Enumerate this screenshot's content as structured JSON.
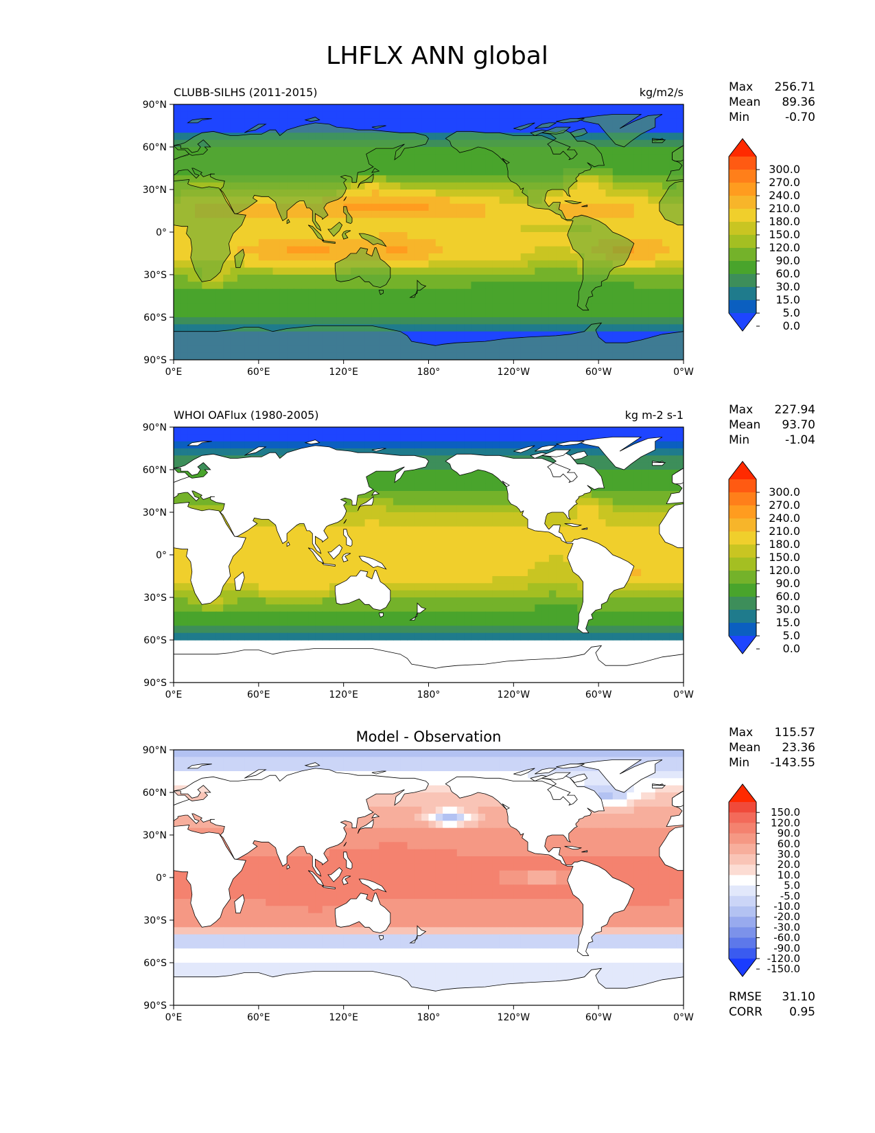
{
  "figure_title": "LHFLX ANN global",
  "chart_data": [
    {
      "type": "heatmap",
      "title": "CLUBB-SILHS (2011-2015)",
      "units": "kg/m2/s",
      "xlim": [
        0,
        360
      ],
      "ylim": [
        -90,
        90
      ],
      "x_ticks": [
        "0°E",
        "60°E",
        "120°E",
        "180°",
        "120°W",
        "60°W",
        "0°W"
      ],
      "y_ticks": [
        "90°N",
        "60°N",
        "30°N",
        "0°",
        "30°S",
        "60°S",
        "90°S"
      ],
      "stats": [
        {
          "label": "Max",
          "value": "256.71"
        },
        {
          "label": "Mean",
          "value": "89.36"
        },
        {
          "label": "Min",
          "value": "-0.70"
        }
      ],
      "colorbar": {
        "levels": [
          "300.0",
          "270.0",
          "240.0",
          "210.0",
          "180.0",
          "150.0",
          "120.0",
          "90.0",
          "60.0",
          "30.0",
          "15.0",
          "5.0",
          "0.0"
        ],
        "colors": [
          "#ff2a00",
          "#ff5a12",
          "#ff7f1a",
          "#ff9c1f",
          "#f7b52a",
          "#f0cf2c",
          "#c9c522",
          "#a4bf22",
          "#74b22a",
          "#49a42c",
          "#3d8e5a",
          "#1f7b8c",
          "#0b5fc0",
          "#1e45ff"
        ]
      },
      "field": "model",
      "land_masked": false
    },
    {
      "type": "heatmap",
      "title": "WHOI OAFlux (1980-2005)",
      "units": "kg m-2 s-1",
      "xlim": [
        0,
        360
      ],
      "ylim": [
        -90,
        90
      ],
      "x_ticks": [
        "0°E",
        "60°E",
        "120°E",
        "180°",
        "120°W",
        "60°W",
        "0°W"
      ],
      "y_ticks": [
        "90°N",
        "60°N",
        "30°N",
        "0°",
        "30°S",
        "60°S",
        "90°S"
      ],
      "stats": [
        {
          "label": "Max",
          "value": "227.94"
        },
        {
          "label": "Mean",
          "value": "93.70"
        },
        {
          "label": "Min",
          "value": "-1.04"
        }
      ],
      "colorbar": {
        "levels": [
          "300.0",
          "270.0",
          "240.0",
          "210.0",
          "180.0",
          "150.0",
          "120.0",
          "90.0",
          "60.0",
          "30.0",
          "15.0",
          "5.0",
          "0.0"
        ],
        "colors": [
          "#ff2a00",
          "#ff5a12",
          "#ff7f1a",
          "#ff9c1f",
          "#f7b52a",
          "#f0cf2c",
          "#c9c522",
          "#a4bf22",
          "#74b22a",
          "#49a42c",
          "#3d8e5a",
          "#1f7b8c",
          "#0b5fc0",
          "#1e45ff"
        ]
      },
      "field": "obs",
      "land_masked": true
    },
    {
      "type": "heatmap",
      "title": "Model - Observation",
      "units": "",
      "xlim": [
        0,
        360
      ],
      "ylim": [
        -90,
        90
      ],
      "x_ticks": [
        "0°E",
        "60°E",
        "120°E",
        "180°",
        "120°W",
        "60°W",
        "0°W"
      ],
      "y_ticks": [
        "90°N",
        "60°N",
        "30°N",
        "0°",
        "30°S",
        "60°S",
        "90°S"
      ],
      "stats": [
        {
          "label": "Max",
          "value": "115.57"
        },
        {
          "label": "Mean",
          "value": "23.36"
        },
        {
          "label": "Min",
          "value": "-143.55"
        }
      ],
      "colorbar": {
        "levels": [
          "150.0",
          "120.0",
          "90.0",
          "60.0",
          "30.0",
          "20.0",
          "10.0",
          "5.0",
          "-5.0",
          "-10.0",
          "-20.0",
          "-30.0",
          "-60.0",
          "-90.0",
          "-120.0",
          "-150.0"
        ],
        "colors": [
          "#ff2a00",
          "#f04a3a",
          "#f36a5a",
          "#f4826f",
          "#f59884",
          "#f7ae9c",
          "#f9c4b6",
          "#fcdcd3",
          "#ffffff",
          "#e2e8fb",
          "#cbd5f7",
          "#b3c2f2",
          "#98aaee",
          "#7c92ea",
          "#5d78ea",
          "#3a5bf0",
          "#1a3cff"
        ]
      },
      "field": "diff",
      "land_masked": true,
      "metrics": [
        {
          "label": "RMSE",
          "value": "31.10"
        },
        {
          "label": "CORR",
          "value": "0.95"
        }
      ]
    }
  ]
}
